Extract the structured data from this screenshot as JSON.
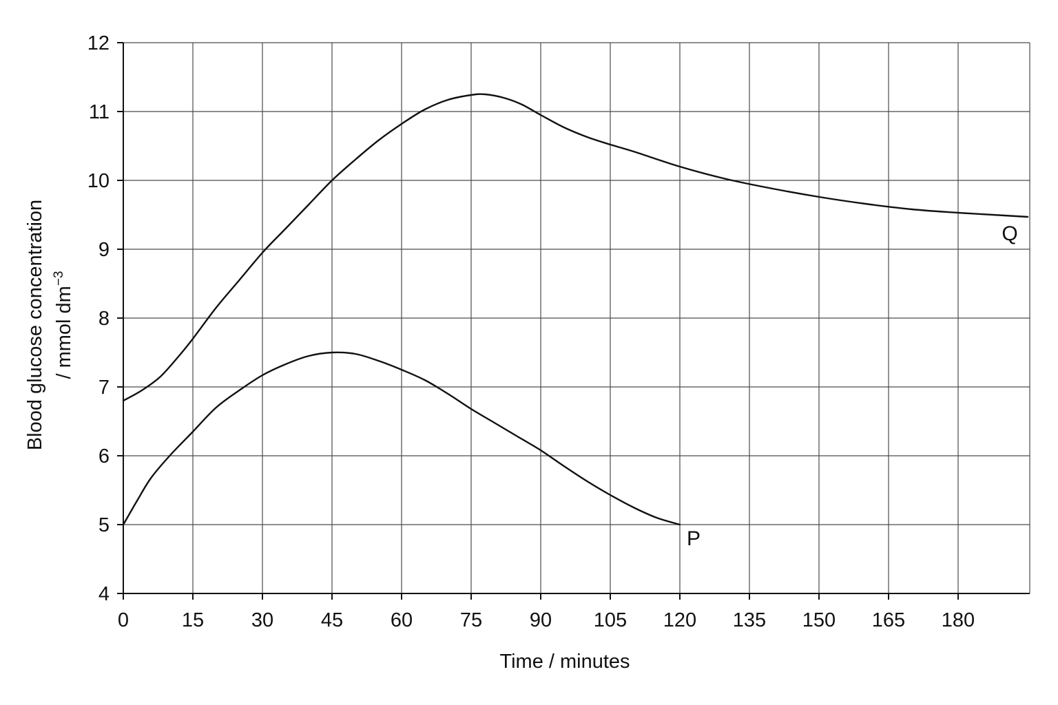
{
  "chart_data": {
    "type": "line",
    "xlabel": "Time / minutes",
    "ylabel_lines": [
      "Blood glucose concentration",
      "/ mmol dm"
    ],
    "ylabel_superscript": "−3",
    "xlim": [
      0,
      195
    ],
    "ylim": [
      4,
      12
    ],
    "x_ticks": [
      0,
      15,
      30,
      45,
      60,
      75,
      90,
      105,
      120,
      135,
      150,
      165,
      180
    ],
    "y_ticks": [
      4,
      5,
      6,
      7,
      8,
      9,
      10,
      11,
      12
    ],
    "grid": true,
    "series": [
      {
        "name": "Q",
        "x": [
          0,
          4,
          8,
          12,
          15,
          20,
          25,
          30,
          35,
          40,
          45,
          50,
          55,
          60,
          65,
          70,
          75,
          78,
          82,
          86,
          90,
          95,
          100,
          105,
          110,
          120,
          130,
          140,
          150,
          160,
          170,
          180,
          190,
          195
        ],
        "y": [
          6.8,
          6.95,
          7.15,
          7.45,
          7.7,
          8.15,
          8.55,
          8.95,
          9.3,
          9.65,
          10.0,
          10.3,
          10.58,
          10.82,
          11.03,
          11.17,
          11.24,
          11.25,
          11.2,
          11.1,
          10.95,
          10.77,
          10.63,
          10.52,
          10.42,
          10.2,
          10.02,
          9.88,
          9.76,
          9.66,
          9.58,
          9.53,
          9.49,
          9.47
        ]
      },
      {
        "name": "P",
        "x": [
          0,
          3,
          6,
          10,
          15,
          20,
          25,
          30,
          35,
          40,
          45,
          50,
          55,
          60,
          65,
          70,
          75,
          80,
          85,
          90,
          95,
          100,
          105,
          110,
          115,
          120
        ],
        "y": [
          5.0,
          5.35,
          5.68,
          6.0,
          6.35,
          6.7,
          6.95,
          7.17,
          7.33,
          7.45,
          7.5,
          7.48,
          7.38,
          7.25,
          7.1,
          6.9,
          6.68,
          6.48,
          6.28,
          6.08,
          5.85,
          5.63,
          5.43,
          5.25,
          5.1,
          5.0
        ]
      }
    ]
  }
}
